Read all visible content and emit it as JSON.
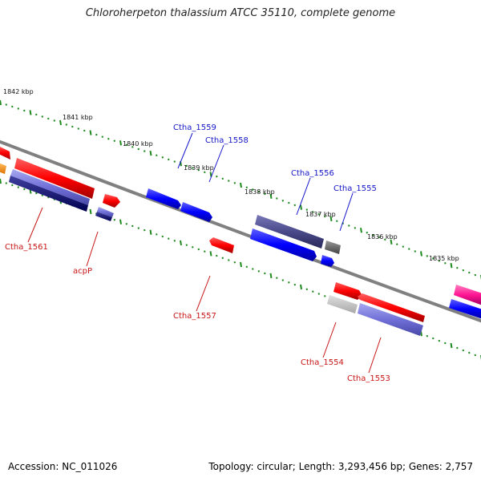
{
  "title": "Chloroherpeton thalassium ATCC 35110, complete genome",
  "footer": {
    "accession": "Accession: NC_011026",
    "stats": "Topology: circular; Length: 3,293,456 bp; Genes: 2,757"
  },
  "kbp_labels": [
    "1842 kbp",
    "1841 kbp",
    "1840 kbp",
    "1839 kbp",
    "1838 kbp",
    "1837 kbp",
    "1836 kbp",
    "1835 kbp"
  ],
  "gene_labels_forward": [
    "Ctha_1559",
    "Ctha_1558",
    "Ctha_1556",
    "Ctha_1555"
  ],
  "gene_labels_reverse": [
    "Ctha_1561",
    "acpP",
    "Ctha_1557",
    "Ctha_1554",
    "Ctha_1553"
  ],
  "colors": {
    "forward_label": "#1515c8",
    "reverse_label": "#c81515",
    "backbone": "#808080",
    "tick": "#1e8a1e"
  }
}
